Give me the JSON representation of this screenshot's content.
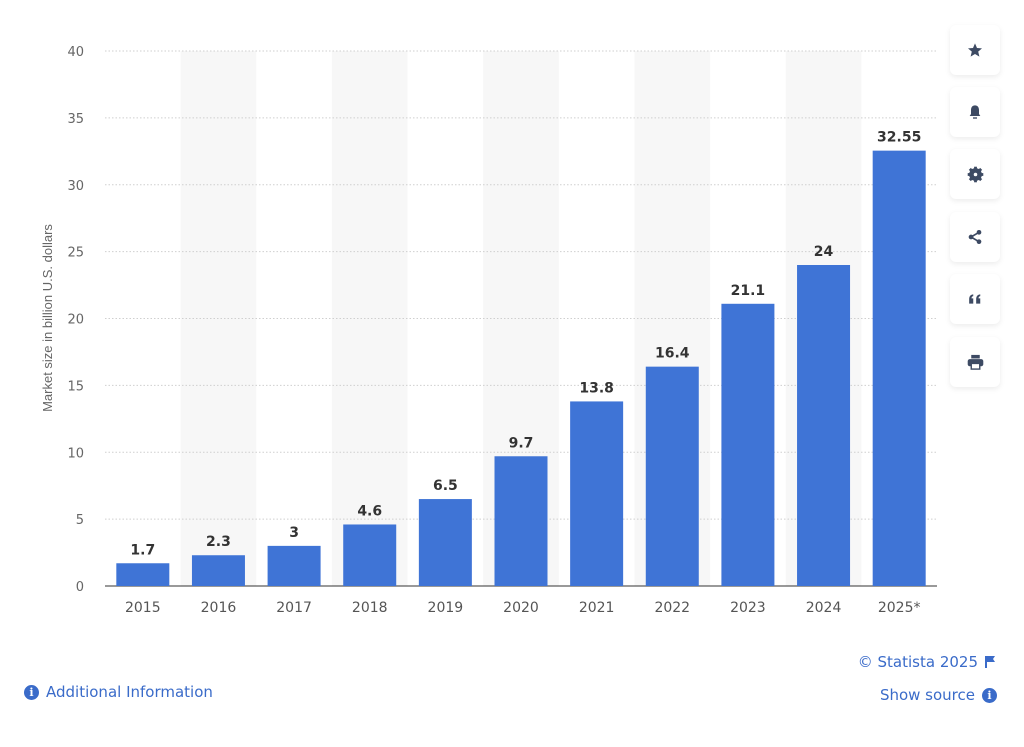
{
  "chart_data": {
    "type": "bar",
    "categories": [
      "2015",
      "2016",
      "2017",
      "2018",
      "2019",
      "2020",
      "2021",
      "2022",
      "2023",
      "2024",
      "2025*"
    ],
    "values": [
      1.7,
      2.3,
      3,
      4.6,
      6.5,
      9.7,
      13.8,
      16.4,
      21.1,
      24,
      32.55
    ],
    "value_labels": [
      "1.7",
      "2.3",
      "3",
      "4.6",
      "6.5",
      "9.7",
      "13.8",
      "16.4",
      "21.1",
      "24",
      "32.55"
    ],
    "xlabel": "",
    "ylabel": "Market size in billion U.S. dollars",
    "ylim": [
      0,
      40
    ],
    "yticks": [
      0,
      5,
      10,
      15,
      20,
      25,
      30,
      35,
      40
    ],
    "grid": true,
    "bar_color": "#3f74d6"
  },
  "sidebar": {
    "icons": [
      "star-icon",
      "bell-icon",
      "gear-icon",
      "share-icon",
      "quote-icon",
      "print-icon"
    ]
  },
  "footer": {
    "copyright": "© Statista 2025",
    "additional_info": "Additional Information",
    "show_source": "Show source"
  },
  "colors": {
    "accent": "#3a6bc9",
    "icon": "#3d4a63"
  }
}
